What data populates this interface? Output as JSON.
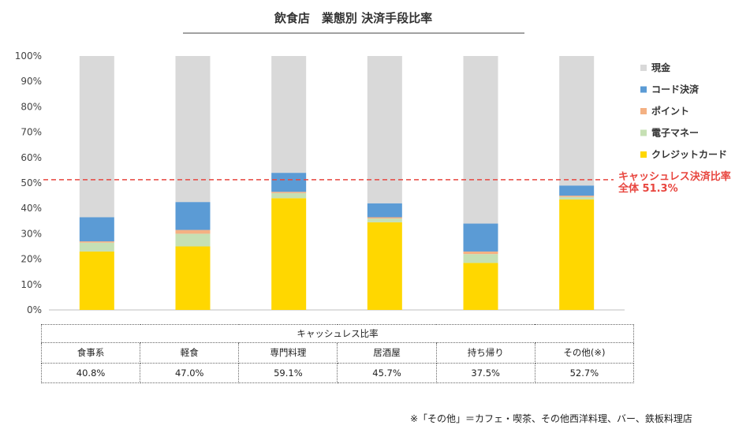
{
  "chart_data": {
    "type": "bar",
    "stacked": true,
    "title": "飲食店　業態別 決済手段比率",
    "categories": [
      "食事系",
      "軽食",
      "専門料理",
      "居酒屋",
      "持ち帰り",
      "その他(※)"
    ],
    "y_ticks": [
      "0%",
      "10%",
      "20%",
      "30%",
      "40%",
      "50%",
      "60%",
      "70%",
      "80%",
      "90%",
      "100%"
    ],
    "ylim": [
      0,
      100
    ],
    "series": [
      {
        "name": "クレジットカード",
        "color": "#ffd700",
        "values": [
          23.0,
          25.0,
          44.0,
          34.5,
          18.5,
          43.5
        ]
      },
      {
        "name": "電子マネー",
        "color": "#c6e0b4",
        "values": [
          3.5,
          5.0,
          2.0,
          1.5,
          3.5,
          1.0
        ]
      },
      {
        "name": "ポイント",
        "color": "#f4b183",
        "values": [
          0.5,
          1.5,
          0.5,
          0.5,
          1.0,
          0.5
        ]
      },
      {
        "name": "コード決済",
        "color": "#5b9bd5",
        "values": [
          9.5,
          11.0,
          7.5,
          5.5,
          11.0,
          4.0
        ]
      },
      {
        "name": "現金",
        "color": "#d9d9d9",
        "values": [
          63.5,
          57.5,
          46.0,
          58.0,
          66.0,
          51.0
        ]
      }
    ],
    "legend_order": [
      "現金",
      "コード決済",
      "ポイント",
      "電子マネー",
      "クレジットカード"
    ],
    "reference_line": {
      "value": 51.3,
      "label_line1": "キャッシュレス決済比率",
      "label_line2": "全体 51.3%",
      "color": "#e8463f"
    }
  },
  "table": {
    "title": "キャッシュレス比率",
    "headers": [
      "食事系",
      "軽食",
      "専門料理",
      "居酒屋",
      "持ち帰り",
      "その他(※)"
    ],
    "values": [
      "40.8%",
      "47.0%",
      "59.1%",
      "45.7%",
      "37.5%",
      "52.7%"
    ]
  },
  "footnote": "※「その他」＝カフェ・喫茶、その他西洋料理、バー、鉄板料理店"
}
